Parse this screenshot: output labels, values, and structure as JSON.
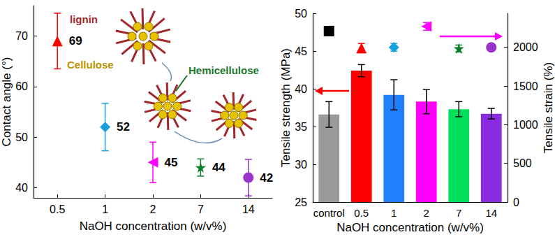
{
  "chart_data": [
    {
      "type": "scatter",
      "xlabel": "NaOH concentration (w/v%)",
      "ylabel": "Contact angle (°)",
      "categories": [
        "0.5",
        "1",
        "2",
        "7",
        "14"
      ],
      "series": [
        {
          "color": "#ff0000",
          "marker": "triangle",
          "values": [
            69,
            null,
            null,
            null,
            null
          ],
          "errors": [
            5.5,
            null,
            null,
            null,
            null
          ]
        },
        {
          "color": "#1a9fe0",
          "marker": "diamond",
          "values": [
            null,
            52,
            null,
            null,
            null
          ],
          "errors": [
            null,
            4.7,
            null,
            null,
            null
          ]
        },
        {
          "color": "#ff00ff",
          "marker": "triangle-left",
          "values": [
            null,
            null,
            45,
            null,
            null
          ],
          "errors": [
            null,
            null,
            4,
            null,
            null
          ]
        },
        {
          "color": "#0a7d2a",
          "marker": "star",
          "values": [
            null,
            null,
            null,
            44,
            null
          ],
          "errors": [
            null,
            null,
            null,
            1.7,
            null
          ]
        },
        {
          "color": "#9933cc",
          "marker": "circle",
          "values": [
            null,
            null,
            null,
            null,
            42
          ],
          "errors": [
            null,
            null,
            null,
            null,
            3.6
          ]
        }
      ],
      "ylim": [
        38,
        76
      ],
      "yticks": [
        40,
        50,
        60,
        70
      ],
      "data_labels": true,
      "grid": false,
      "annotations": [
        "lignin",
        "Cellulose",
        "Hemicellulose"
      ]
    },
    {
      "type": "bar",
      "xlabel": "NaOH concentration (w/v%)",
      "ylabel": "Tensile strength (MPa)",
      "y2label": "Tensile strain (%)",
      "categories": [
        "control",
        "0.5",
        "1",
        "2",
        "7",
        "14"
      ],
      "series": [
        {
          "type": "bar",
          "colors": [
            "#9a9a9a",
            "#ff0000",
            "#1f7fff",
            "#ff00ff",
            "#00e05a",
            "#8a2be2"
          ],
          "values": [
            36.6,
            42.4,
            39.2,
            38.3,
            37.3,
            36.7
          ],
          "errors": [
            1.7,
            0.8,
            2,
            1.6,
            1,
            0.7
          ]
        },
        {
          "type": "scatter",
          "axis": "y2",
          "color": "#000000",
          "marker": "square",
          "values": [
            2210,
            null,
            null,
            null,
            null,
            null
          ],
          "errors": [
            40,
            null,
            null,
            null,
            null,
            null
          ]
        },
        {
          "type": "scatter",
          "axis": "y2",
          "color": "#ff0000",
          "marker": "triangle",
          "values": [
            null,
            1990,
            null,
            null,
            null,
            null
          ],
          "errors": [
            null,
            60,
            null,
            null,
            null,
            null
          ]
        },
        {
          "type": "scatter",
          "axis": "y2",
          "color": "#1a9fe0",
          "marker": "diamond",
          "values": [
            null,
            null,
            2000,
            null,
            null,
            null
          ],
          "errors": [
            null,
            null,
            50,
            null,
            null,
            null
          ]
        },
        {
          "type": "scatter",
          "axis": "y2",
          "color": "#ff00ff",
          "marker": "triangle-left",
          "values": [
            null,
            null,
            null,
            2270,
            null,
            null
          ],
          "errors": [
            null,
            null,
            null,
            50,
            null,
            null
          ]
        },
        {
          "type": "scatter",
          "axis": "y2",
          "color": "#0a7d2a",
          "marker": "star",
          "values": [
            null,
            null,
            null,
            null,
            1985,
            null
          ],
          "errors": [
            null,
            null,
            null,
            null,
            45,
            null
          ]
        },
        {
          "type": "scatter",
          "axis": "y2",
          "color": "#9933cc",
          "marker": "circle",
          "values": [
            null,
            null,
            null,
            null,
            null,
            2000
          ],
          "errors": [
            null,
            null,
            null,
            null,
            null,
            30
          ]
        }
      ],
      "ylim": [
        25,
        50
      ],
      "yticks": [
        25,
        30,
        35,
        40,
        45,
        50
      ],
      "y2lim": [
        0,
        2440
      ],
      "y2ticks": [
        0,
        500,
        1000,
        1500,
        2000
      ],
      "grid": false
    }
  ]
}
